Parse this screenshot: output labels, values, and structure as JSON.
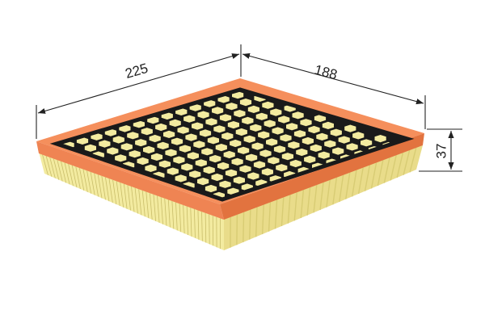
{
  "dimensions": {
    "length": "225",
    "width": "188",
    "height": "37"
  },
  "colors": {
    "frame": "#f58f5c",
    "frame_shadow": "#d9663a",
    "mesh": "#1a1a1a",
    "media": "#f3eba0",
    "media_shadow": "#d8cc74",
    "pleat": "#c9bd6a",
    "dimension_line": "#222222"
  }
}
